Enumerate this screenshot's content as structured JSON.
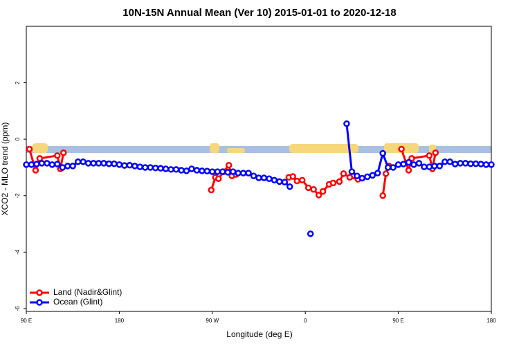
{
  "chart_data": {
    "type": "line",
    "title": "10N-15N Annual Mean (Ver 10)   2015-01-01 to 2020-12-18",
    "x_label": "Longitude (deg E)",
    "y_label": "XCO2 - MLO trend (ppm)",
    "xlim": [
      90,
      540
    ],
    "ylim": [
      -6.1,
      4
    ],
    "xticks": [
      {
        "value": 90,
        "label": "90 E"
      },
      180,
      {
        "value": 270,
        "label": "90 W"
      },
      {
        "value": 360,
        "label": "0"
      },
      {
        "value": 450,
        "label": "90 E"
      },
      {
        "value": 540,
        "label": "180"
      }
    ],
    "yticks": [
      -6,
      -4,
      -2,
      0,
      2
    ],
    "legend": "bottom-left",
    "series": [
      {
        "name": "Land (Nadir&Glint)",
        "color": "#ff0000",
        "x": [
          93,
          99,
          103,
          120,
          123,
          126,
          200,
          269,
          273,
          276,
          281,
          286,
          289,
          293,
          320,
          344,
          348,
          352,
          357,
          363,
          368,
          373,
          377,
          383,
          387,
          393,
          397,
          403,
          411,
          425,
          435,
          438,
          441,
          446,
          453,
          460,
          463,
          480,
          483,
          486
        ],
        "values": [
          -0.35,
          -1.1,
          -0.68,
          -0.58,
          -1.05,
          -0.48,
          null,
          -1.8,
          -1.35,
          -1.4,
          -1.15,
          -0.92,
          -1.3,
          -1.25,
          null,
          -1.35,
          -1.32,
          -1.48,
          -1.45,
          -1.72,
          -1.78,
          -1.98,
          -1.85,
          -1.6,
          -1.55,
          -1.5,
          -1.22,
          -1.35,
          -1.42,
          null,
          -2.0,
          -1.22,
          -0.95,
          null,
          -0.35,
          -1.1,
          -0.68,
          -0.58,
          -1.05,
          -0.48
        ]
      },
      {
        "name": "Ocean (Glint)",
        "color": "#0000ff",
        "x": [
          90,
          95,
          100,
          105,
          110,
          115,
          120,
          125,
          130,
          135,
          140,
          145,
          150,
          155,
          160,
          165,
          170,
          175,
          180,
          185,
          190,
          195,
          200,
          205,
          210,
          215,
          220,
          225,
          230,
          235,
          240,
          245,
          250,
          255,
          260,
          265,
          270,
          275,
          280,
          285,
          290,
          295,
          300,
          305,
          310,
          315,
          320,
          325,
          330,
          335,
          340,
          345,
          350,
          355,
          360,
          365,
          370,
          375,
          380,
          385,
          390,
          395,
          400,
          405,
          410,
          415,
          420,
          425,
          430,
          435,
          440,
          445,
          450,
          455,
          460,
          465,
          470,
          475,
          480,
          485,
          490,
          495,
          500,
          505,
          510,
          515,
          520,
          525,
          530,
          535,
          540
        ],
        "values": [
          -0.9,
          -0.9,
          -0.88,
          -0.85,
          -0.85,
          -0.9,
          -0.88,
          -1.0,
          -0.95,
          -0.95,
          -0.8,
          -0.8,
          -0.85,
          -0.85,
          -0.85,
          -0.85,
          -0.87,
          -0.87,
          -0.9,
          -0.93,
          -0.92,
          -0.95,
          -0.98,
          -1.0,
          -1.0,
          -1.02,
          -1.03,
          -1.05,
          -1.07,
          -1.07,
          -1.1,
          -1.12,
          -1.05,
          -1.1,
          -1.12,
          -1.13,
          -1.15,
          -1.15,
          -1.15,
          -1.17,
          -1.15,
          -1.2,
          -1.2,
          -1.2,
          -1.3,
          -1.37,
          -1.37,
          -1.4,
          -1.45,
          -1.5,
          -1.52,
          -1.68,
          null,
          null,
          null,
          -3.35,
          null,
          null,
          null,
          null,
          null,
          null,
          0.55,
          -1.15,
          -1.3,
          -1.38,
          -1.33,
          -1.28,
          -1.2,
          -0.5,
          -1.0,
          -1.0,
          -0.9,
          -0.88,
          -0.82,
          -0.9,
          -0.85,
          -0.98,
          -0.98,
          -0.95,
          -0.95,
          -0.8,
          -0.8,
          -0.88,
          -0.85,
          -0.85,
          -0.87,
          -0.87,
          -0.88,
          -0.9,
          -0.9
        ]
      }
    ]
  }
}
